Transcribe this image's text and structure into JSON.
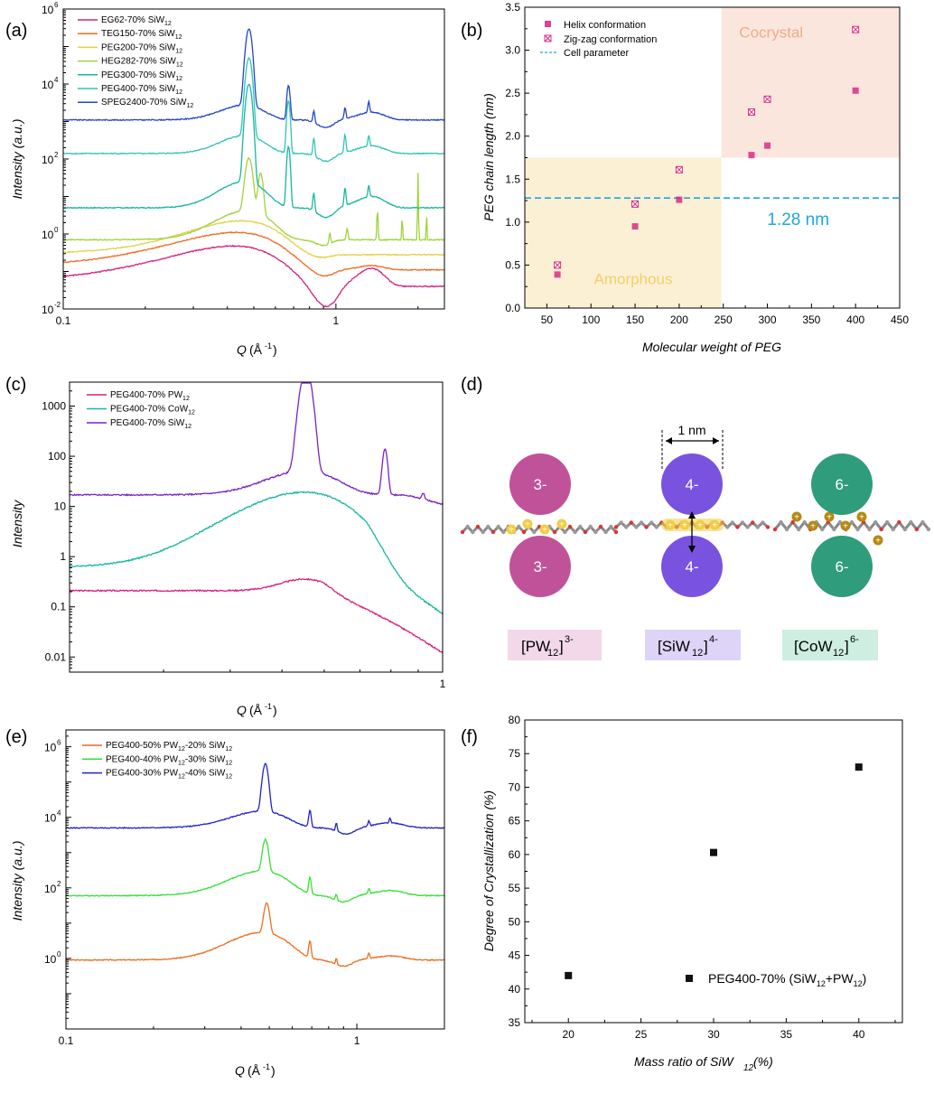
{
  "colors": {
    "magenta": "#d6217f",
    "orange": "#ef6c1e",
    "yellow": "#e1d14a",
    "lightgreen": "#9fd33a",
    "teal": "#17b7a0",
    "aqua": "#2ec5b4",
    "blue": "#2244c8",
    "purple": "#7b22c4",
    "green": "#35e035",
    "black": "#111111",
    "cyan": "#1fa7e0",
    "amorphous_bg": "#fbf0d4",
    "cocrystal_bg": "#fbe6de",
    "pw_color": "#c0529a",
    "siw_color": "#7a52e0",
    "cow_color": "#2f9c7c",
    "chain_gold": "#b48a12",
    "chain_yellow": "#f2cd44"
  },
  "chart_data": [
    {
      "panel": "(a)",
      "type": "line",
      "xscale": "log",
      "yscale": "log",
      "xlim": [
        0.1,
        2.5
      ],
      "ylim": [
        0.01,
        1000000
      ],
      "xlabel": "Q (Å⁻¹)",
      "ylabel": "Intensity (a.u.)",
      "xticks": [
        "0.1",
        "1"
      ],
      "yticks": [
        {
          "base": "10",
          "exp": "-2"
        },
        {
          "base": "10",
          "exp": "0"
        },
        {
          "base": "10",
          "exp": "2"
        },
        {
          "base": "10",
          "exp": "4"
        },
        {
          "base": "10",
          "exp": "6"
        }
      ],
      "legend": [
        {
          "text": "EG62-70% SiW",
          "sub": "12",
          "color": "#d6217f"
        },
        {
          "text": "TEG150-70% SiW",
          "sub": "12",
          "color": "#ef6c1e"
        },
        {
          "text": "PEG200-70% SiW",
          "sub": "12",
          "color": "#e1d14a"
        },
        {
          "text": "HEG282-70% SiW",
          "sub": "12",
          "color": "#9fd33a"
        },
        {
          "text": "PEG300-70% SiW",
          "sub": "12",
          "color": "#17b7a0"
        },
        {
          "text": "PEG400-70% SiW",
          "sub": "12",
          "color": "#2ec5b4"
        },
        {
          "text": "SPEG2400-70% SiW",
          "sub": "12",
          "color": "#2244c8"
        }
      ],
      "series": [
        {
          "name": "EG62-70% SiW12",
          "color": "#d6217f",
          "base": 0.04,
          "broad": [
            {
              "c": 0.42,
              "w": 0.2,
              "a": 12
            }
          ],
          "dip": [
            {
              "c": 0.92,
              "w": 0.1,
              "a": 3.5
            }
          ],
          "hump": [
            {
              "c": 1.35,
              "w": 0.18,
              "a": 3
            }
          ],
          "peaks": []
        },
        {
          "name": "TEG150-70% SiW12",
          "color": "#ef6c1e",
          "base": 0.11,
          "broad": [
            {
              "c": 0.43,
              "w": 0.2,
              "a": 10
            }
          ],
          "dip": [
            {
              "c": 0.9,
              "w": 0.1,
              "a": 1.5
            }
          ],
          "hump": [
            {
              "c": 1.35,
              "w": 0.2,
              "a": 1.3
            }
          ],
          "peaks": []
        },
        {
          "name": "PEG200-70% SiW12",
          "color": "#e1d14a",
          "base": 0.28,
          "broad": [
            {
              "c": 0.45,
              "w": 0.18,
              "a": 8
            }
          ],
          "dip": [
            {
              "c": 0.88,
              "w": 0.1,
              "a": 1.2
            }
          ],
          "hump": [
            {
              "c": 1.3,
              "w": 0.2,
              "a": 1
            }
          ],
          "peaks": []
        },
        {
          "name": "HEG282-70% SiW12",
          "color": "#9fd33a",
          "base": 0.7,
          "broad": [
            {
              "c": 0.47,
              "w": 0.12,
              "a": 6
            }
          ],
          "dip": [
            {
              "c": 0.9,
              "w": 0.08,
              "a": 1.4
            }
          ],
          "hump": [],
          "peaks": [
            {
              "c": 0.48,
              "w": 0.015,
              "a": 25
            },
            {
              "c": 0.53,
              "w": 0.012,
              "a": 12
            },
            {
              "c": 0.95,
              "w": 0.008,
              "a": 2
            },
            {
              "c": 1.1,
              "w": 0.01,
              "a": 2
            },
            {
              "c": 1.42,
              "w": 0.008,
              "a": 6
            },
            {
              "c": 1.75,
              "w": 0.008,
              "a": 4
            },
            {
              "c": 2.0,
              "w": 0.007,
              "a": 60
            },
            {
              "c": 2.15,
              "w": 0.007,
              "a": 6
            }
          ]
        },
        {
          "name": "PEG300-70% SiW12",
          "color": "#17b7a0",
          "base": 5,
          "broad": [
            {
              "c": 0.46,
              "w": 0.1,
              "a": 5
            }
          ],
          "dip": [
            {
              "c": 0.92,
              "w": 0.08,
              "a": 1.8
            }
          ],
          "hump": [
            {
              "c": 1.35,
              "w": 0.2,
              "a": 2
            }
          ],
          "peaks": [
            {
              "c": 0.48,
              "w": 0.013,
              "a": 400
            },
            {
              "c": 0.67,
              "w": 0.01,
              "a": 40
            },
            {
              "c": 0.83,
              "w": 0.008,
              "a": 3
            },
            {
              "c": 1.08,
              "w": 0.01,
              "a": 3
            },
            {
              "c": 1.32,
              "w": 0.012,
              "a": 2
            }
          ]
        },
        {
          "name": "PEG400-70% SiW12",
          "color": "#2ec5b4",
          "base": 140,
          "broad": [
            {
              "c": 0.46,
              "w": 0.1,
              "a": 3
            }
          ],
          "dip": [
            {
              "c": 0.92,
              "w": 0.08,
              "a": 1.6
            }
          ],
          "hump": [
            {
              "c": 1.35,
              "w": 0.2,
              "a": 1.6
            }
          ],
          "peaks": [
            {
              "c": 0.48,
              "w": 0.013,
              "a": 120
            },
            {
              "c": 0.67,
              "w": 0.01,
              "a": 25
            },
            {
              "c": 0.83,
              "w": 0.008,
              "a": 3
            },
            {
              "c": 1.08,
              "w": 0.01,
              "a": 3
            },
            {
              "c": 1.32,
              "w": 0.012,
              "a": 2
            }
          ]
        },
        {
          "name": "SPEG2400-70% SiW12",
          "color": "#2244c8",
          "base": 1100,
          "broad": [
            {
              "c": 0.46,
              "w": 0.1,
              "a": 2.5
            }
          ],
          "dip": [
            {
              "c": 0.92,
              "w": 0.08,
              "a": 1.6
            }
          ],
          "hump": [
            {
              "c": 1.35,
              "w": 0.2,
              "a": 1.6
            }
          ],
          "peaks": [
            {
              "c": 0.48,
              "w": 0.013,
              "a": 110
            },
            {
              "c": 0.67,
              "w": 0.01,
              "a": 8
            },
            {
              "c": 0.83,
              "w": 0.008,
              "a": 2
            },
            {
              "c": 1.08,
              "w": 0.01,
              "a": 2
            },
            {
              "c": 1.32,
              "w": 0.012,
              "a": 2
            }
          ]
        }
      ]
    },
    {
      "panel": "(b)",
      "type": "scatter",
      "xlim": [
        25,
        450
      ],
      "ylim": [
        0,
        3.5
      ],
      "xlabel": "Molecular weight of PEG",
      "ylabel": "PEG chain length (nm)",
      "xticks": [
        "50",
        "100",
        "150",
        "200",
        "250",
        "300",
        "350",
        "400",
        "450"
      ],
      "yticks": [
        "0.0",
        "0.5",
        "1.0",
        "1.5",
        "2.0",
        "2.5",
        "3.0",
        "3.5"
      ],
      "region_amorphous": {
        "x": [
          25,
          248
        ],
        "y": [
          0,
          1.75
        ],
        "label": "Amorphous"
      },
      "region_cocrystal": {
        "x": [
          248,
          450
        ],
        "y": [
          1.75,
          3.5
        ],
        "label": "Cocrystal"
      },
      "cell_parameter": 1.28,
      "cell_label": "1.28 nm",
      "legend": [
        {
          "text": "Helix conformation",
          "marker": "square"
        },
        {
          "text": "Zig-zag conformation",
          "marker": "crossbox"
        },
        {
          "text": "Cell parameter",
          "marker": "dash"
        }
      ],
      "series": [
        {
          "name": "Helix conformation",
          "x": [
            62,
            150,
            200,
            282,
            300,
            400
          ],
          "y": [
            0.39,
            0.95,
            1.26,
            1.78,
            1.89,
            2.53
          ]
        },
        {
          "name": "Zig-zag conformation",
          "x": [
            62,
            150,
            200,
            282,
            300,
            400
          ],
          "y": [
            0.5,
            1.21,
            1.61,
            2.28,
            2.43,
            3.24
          ]
        }
      ]
    },
    {
      "panel": "(c)",
      "type": "line",
      "xscale": "log",
      "yscale": "log",
      "xlim": [
        0.2,
        1.0
      ],
      "ylim": [
        0.005,
        3000
      ],
      "xlabel": "Q (Å⁻¹)",
      "ylabel": "Intensity",
      "xticks": [
        "1"
      ],
      "yticks": [
        "0.01",
        "0.1",
        "1",
        "10",
        "100",
        "1000"
      ],
      "legend": [
        {
          "text": "PEG400-70% PW",
          "sub": "12",
          "color": "#d6217f"
        },
        {
          "text": "PEG400-70% CoW",
          "sub": "12",
          "color": "#17b7a0"
        },
        {
          "text": "PEG400-70% SiW",
          "sub": "12",
          "color": "#7b22c4"
        }
      ],
      "series": [
        {
          "name": "PEG400-70% PW12",
          "color": "#d6217f",
          "base": 0.21,
          "broad": [
            {
              "c": 0.55,
              "w": 0.07,
              "a": 1.7
            }
          ],
          "dip": [],
          "hump": [],
          "tail": {
            "start": 0.6,
            "to": 0.057
          },
          "peaks": []
        },
        {
          "name": "PEG400-70% CoW12",
          "color": "#17b7a0",
          "base": 0.6,
          "broad": [
            {
              "c": 0.55,
              "w": 0.14,
              "a": 32
            }
          ],
          "dip": [],
          "hump": [],
          "tail": {
            "start": 0.72,
            "to": 0.12
          },
          "peaks": []
        },
        {
          "name": "PEG400-70% SiW12",
          "color": "#7b22c4",
          "base": 17,
          "broad": [
            {
              "c": 0.55,
              "w": 0.1,
              "a": 3
            }
          ],
          "dip": [],
          "hump": [],
          "tail": {
            "start": 0.85,
            "to": 0.65
          },
          "peaks": [
            {
              "c": 0.555,
              "w": 0.015,
              "a": 100
            },
            {
              "c": 0.78,
              "w": 0.01,
              "a": 8
            },
            {
              "c": 0.92,
              "w": 0.008,
              "a": 1.3
            }
          ]
        }
      ]
    },
    {
      "panel": "(e)",
      "type": "line",
      "xscale": "log",
      "yscale": "log",
      "xlim": [
        0.1,
        2.0
      ],
      "ylim": [
        0.01,
        3000000
      ],
      "xlabel": "Q (Å⁻¹)",
      "ylabel": "Intensity (a.u.)",
      "xticks": [
        "0.1",
        "1"
      ],
      "yticks": [
        {
          "base": "10",
          "exp": "0"
        },
        {
          "base": "10",
          "exp": "2"
        },
        {
          "base": "10",
          "exp": "4"
        },
        {
          "base": "10",
          "exp": "6"
        }
      ],
      "legend": [
        {
          "text": "PEG400-50% PW",
          "sub": "12",
          "text2": "-20% SiW",
          "sub2": "12",
          "color": "#ef6c1e"
        },
        {
          "text": "PEG400-40% PW",
          "sub": "12",
          "text2": "-30% SiW",
          "sub2": "12",
          "color": "#35e035"
        },
        {
          "text": "PEG400-30% PW",
          "sub": "12",
          "text2": "-40% SiW",
          "sub2": "12",
          "color": "#2222c8"
        }
      ],
      "series": [
        {
          "name": "PEG400-50% PW12-20% SiW12",
          "color": "#ef6c1e",
          "base": 0.9,
          "broad": [
            {
              "c": 0.47,
              "w": 0.12,
              "a": 6
            }
          ],
          "dip": [
            {
              "c": 0.9,
              "w": 0.08,
              "a": 1.5
            }
          ],
          "hump": [
            {
              "c": 1.3,
              "w": 0.2,
              "a": 1.3
            }
          ],
          "peaks": [
            {
              "c": 0.49,
              "w": 0.012,
              "a": 7
            },
            {
              "c": 0.69,
              "w": 0.008,
              "a": 3
            },
            {
              "c": 0.85,
              "w": 0.007,
              "a": 1.5
            },
            {
              "c": 1.1,
              "w": 0.01,
              "a": 1.4
            }
          ]
        },
        {
          "name": "PEG400-40% PW12-30% SiW12",
          "color": "#35e035",
          "base": 60,
          "broad": [
            {
              "c": 0.47,
              "w": 0.12,
              "a": 5
            }
          ],
          "dip": [
            {
              "c": 0.9,
              "w": 0.08,
              "a": 1.5
            }
          ],
          "hump": [
            {
              "c": 1.3,
              "w": 0.2,
              "a": 1.4
            }
          ],
          "peaks": [
            {
              "c": 0.485,
              "w": 0.012,
              "a": 8
            },
            {
              "c": 0.69,
              "w": 0.008,
              "a": 3
            },
            {
              "c": 0.85,
              "w": 0.007,
              "a": 1.5
            },
            {
              "c": 1.1,
              "w": 0.01,
              "a": 1.4
            }
          ]
        },
        {
          "name": "PEG400-30% PW12-40% SiW12",
          "color": "#2222c8",
          "base": 5000,
          "broad": [
            {
              "c": 0.47,
              "w": 0.12,
              "a": 3
            }
          ],
          "dip": [
            {
              "c": 0.92,
              "w": 0.08,
              "a": 1.5
            }
          ],
          "hump": [
            {
              "c": 1.3,
              "w": 0.2,
              "a": 1.4
            }
          ],
          "peaks": [
            {
              "c": 0.485,
              "w": 0.012,
              "a": 22
            },
            {
              "c": 0.69,
              "w": 0.008,
              "a": 3
            },
            {
              "c": 0.85,
              "w": 0.007,
              "a": 1.7
            },
            {
              "c": 1.1,
              "w": 0.01,
              "a": 1.4
            },
            {
              "c": 1.3,
              "w": 0.01,
              "a": 1.4
            }
          ]
        }
      ]
    },
    {
      "panel": "(f)",
      "type": "scatter",
      "xlim": [
        17,
        43
      ],
      "ylim": [
        35,
        80
      ],
      "xlabel": "Mass ratio of SiW₁₂ (%)",
      "ylabel": "Degree of Crystallization (%)",
      "xticks": [
        "20",
        "25",
        "30",
        "35",
        "40"
      ],
      "yticks": [
        "35",
        "40",
        "45",
        "50",
        "55",
        "60",
        "65",
        "70",
        "75",
        "80"
      ],
      "legend": [
        {
          "text": "PEG400-70% (SiW",
          "sub": "12",
          "text2": "+PW",
          "sub2": "12",
          "text3": ")"
        }
      ],
      "series": [
        {
          "name": "PEG400-70% (SiW12+PW12)",
          "x": [
            20,
            30,
            40
          ],
          "y": [
            42,
            60.3,
            73
          ]
        }
      ]
    }
  ],
  "panel_labels": {
    "a": "(a)",
    "b": "(b)",
    "c": "(c)",
    "d": "(d)",
    "e": "(e)",
    "f": "(f)"
  },
  "axis_texts": {
    "intensity_au": "Intensity (a.u.)",
    "intensity": "Intensity",
    "q_label": "Q (Å⁻¹)",
    "q_letter": "Q",
    "q_unit": "(Å",
    "q_exp": "-1",
    "q_close": ")",
    "mw": "Molecular weight of PEG",
    "chain": "PEG chain length (nm)",
    "doc": "Degree of Crystallization (%)",
    "mass_a": "Mass ratio of SiW",
    "mass_sub": "12",
    "mass_b": " (%)"
  },
  "diagram": {
    "scale_label": "1 nm",
    "charges": [
      "3-",
      "4-",
      "6-"
    ],
    "labels": [
      {
        "pre": "[PW",
        "sub": "12",
        "post": "]",
        "sup": "3-",
        "bg": "#f3d8ea"
      },
      {
        "pre": "[SiW",
        "sub": "12",
        "post": "]",
        "sup": "4-",
        "bg": "#ddd4f7"
      },
      {
        "pre": "[CoW",
        "sub": "12",
        "post": "]",
        "sup": "6-",
        "bg": "#cdeee0"
      }
    ],
    "plus": "+"
  }
}
